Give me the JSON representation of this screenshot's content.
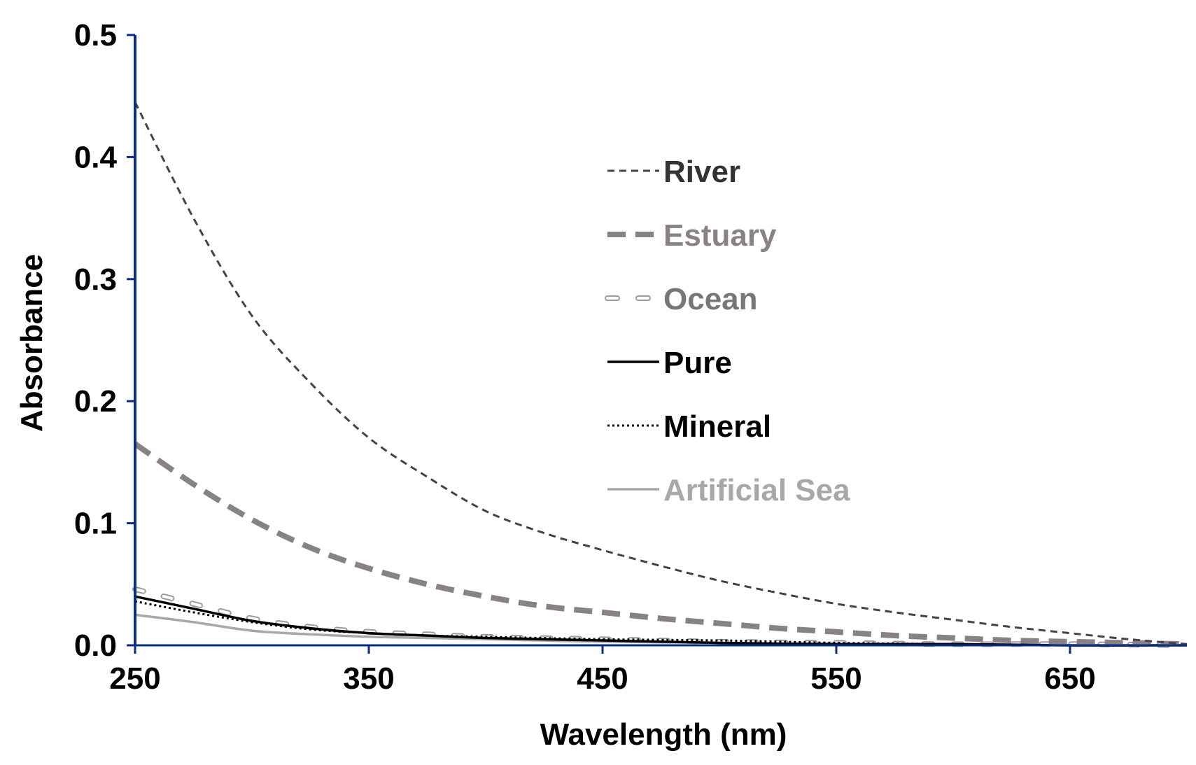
{
  "chart_data": {
    "type": "line",
    "title": "",
    "xlabel": "Wavelength (nm)",
    "ylabel": "Absorbance",
    "xlim": [
      250,
      700
    ],
    "ylim": [
      0,
      0.5
    ],
    "x_ticks": [
      250,
      350,
      450,
      550,
      650
    ],
    "x_tick_labels": [
      "250",
      "350",
      "450",
      "550",
      "650"
    ],
    "y_ticks": [
      0,
      0.1,
      0.2,
      0.3,
      0.4,
      0.5
    ],
    "y_tick_labels": [
      "0.0",
      "0.1",
      "0.2",
      "0.3",
      "0.4",
      "0.5"
    ],
    "grid": false,
    "legend_position": "upper-right",
    "axis_color": "#0b2a8a",
    "series": [
      {
        "name": "River",
        "color": "#444444",
        "style": "dashed-thin",
        "x": [
          250,
          275,
          300,
          325,
          350,
          375,
          400,
          425,
          450,
          475,
          500,
          525,
          550,
          575,
          600,
          625,
          650,
          675,
          700
        ],
        "y": [
          0.445,
          0.35,
          0.27,
          0.215,
          0.17,
          0.138,
          0.11,
          0.092,
          0.078,
          0.065,
          0.053,
          0.043,
          0.034,
          0.027,
          0.021,
          0.015,
          0.01,
          0.005,
          0.001
        ]
      },
      {
        "name": "Estuary",
        "color": "#888283",
        "style": "dashed-thick",
        "x": [
          250,
          275,
          300,
          325,
          350,
          375,
          400,
          425,
          450,
          475,
          500,
          525,
          550,
          575,
          600,
          625,
          650,
          675,
          700
        ],
        "y": [
          0.165,
          0.132,
          0.103,
          0.08,
          0.063,
          0.05,
          0.04,
          0.032,
          0.027,
          0.022,
          0.018,
          0.014,
          0.011,
          0.008,
          0.006,
          0.004,
          0.003,
          0.002,
          0.001
        ]
      },
      {
        "name": "Ocean",
        "color": "#9c9c9c",
        "style": "open-dash",
        "x": [
          250,
          275,
          300,
          325,
          350,
          375,
          400,
          450,
          500,
          550,
          600,
          650,
          700
        ],
        "y": [
          0.046,
          0.034,
          0.022,
          0.015,
          0.011,
          0.009,
          0.007,
          0.005,
          0.003,
          0.002,
          0.001,
          0.001,
          0.0
        ]
      },
      {
        "name": "Pure",
        "color": "#000000",
        "style": "solid",
        "x": [
          250,
          275,
          300,
          325,
          350,
          375,
          400,
          450,
          500,
          550,
          600,
          650,
          700
        ],
        "y": [
          0.04,
          0.03,
          0.02,
          0.014,
          0.01,
          0.008,
          0.006,
          0.004,
          0.002,
          0.001,
          0.001,
          0.0,
          0.0
        ]
      },
      {
        "name": "Mineral",
        "color": "#000000",
        "style": "dotted",
        "x": [
          250,
          275,
          300,
          325,
          350,
          375,
          400,
          450,
          500,
          550,
          600,
          650,
          700
        ],
        "y": [
          0.036,
          0.027,
          0.019,
          0.013,
          0.01,
          0.008,
          0.007,
          0.005,
          0.004,
          0.002,
          0.001,
          0.0,
          0.0
        ]
      },
      {
        "name": "Artificial Sea",
        "color": "#a8a8a8",
        "style": "solid-light",
        "x": [
          250,
          275,
          300,
          325,
          350,
          375,
          400,
          450,
          500,
          550,
          600,
          650,
          700
        ],
        "y": [
          0.025,
          0.019,
          0.012,
          0.009,
          0.007,
          0.006,
          0.005,
          0.003,
          0.002,
          0.001,
          0.001,
          0.0,
          0.0
        ]
      }
    ]
  }
}
